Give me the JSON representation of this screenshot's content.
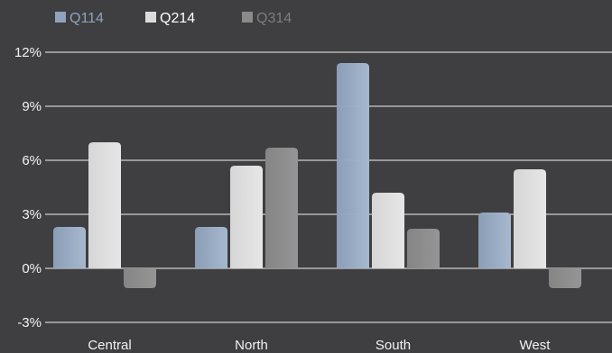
{
  "chart_data": {
    "type": "bar",
    "categories": [
      "Central",
      "North",
      "South",
      "West"
    ],
    "series": [
      {
        "name": "Q114",
        "values": [
          2.3,
          2.3,
          11.4,
          3.1
        ],
        "color": "#8fa3bd",
        "legend_text_color": "#8fa3bd"
      },
      {
        "name": "Q214",
        "values": [
          7.0,
          5.7,
          4.2,
          5.5
        ],
        "color": "#dcdcdc",
        "legend_text_color": "#ffffff"
      },
      {
        "name": "Q314",
        "values": [
          -1.1,
          6.7,
          2.2,
          -1.1
        ],
        "color": "#8a8a8a",
        "legend_text_color": "#7c7c7c"
      }
    ],
    "yticks": [
      "12%",
      "9%",
      "6%",
      "3%",
      "0%",
      "-3%"
    ],
    "ylim": [
      -3,
      12
    ],
    "grid": true,
    "legend_position": "top-left",
    "colors": {
      "background": "#3f3f41",
      "grid": "#f0f0f0",
      "text": "#f2f2f2"
    }
  }
}
